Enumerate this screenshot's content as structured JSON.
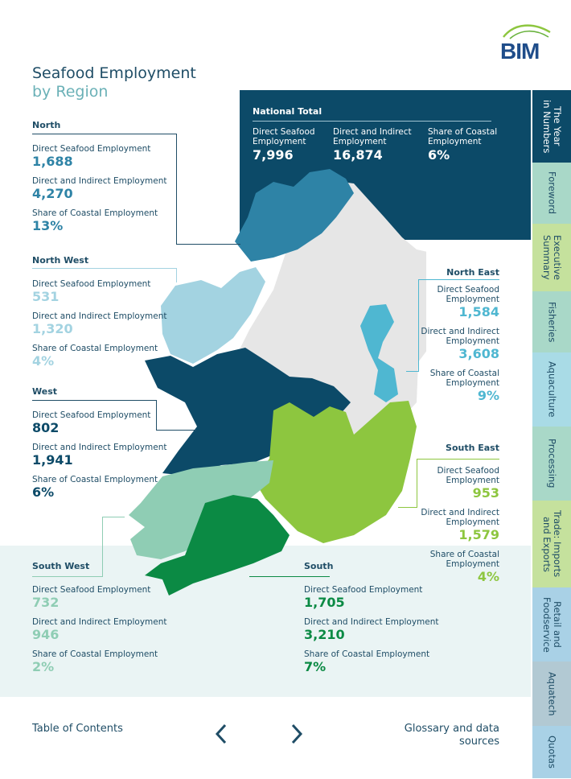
{
  "header": {
    "title": "Seafood Employment",
    "subtitle": "by Region",
    "logo_text": "BIM"
  },
  "national": {
    "title": "National Total",
    "items": [
      {
        "label": "Direct Seafood Employment",
        "value": "7,996"
      },
      {
        "label": "Direct and Indirect Employment",
        "value": "16,874"
      },
      {
        "label": "Share of Coastal Employment",
        "value": "6%"
      }
    ]
  },
  "labels": {
    "direct": "Direct Seafood Employment",
    "indirect": "Direct and Indirect Employment",
    "share": "Share of Coastal Employment"
  },
  "regions": {
    "north": {
      "name": "North",
      "direct": "1,688",
      "indirect": "4,270",
      "share": "13%",
      "color": "#2e83a6"
    },
    "northwest": {
      "name": "North West",
      "direct": "531",
      "indirect": "1,320",
      "share": "4%",
      "color": "#a3d3e1"
    },
    "west": {
      "name": "West",
      "direct": "802",
      "indirect": "1,941",
      "share": "6%",
      "color": "#0c4a68"
    },
    "southwest": {
      "name": "South West",
      "direct": "732",
      "indirect": "946",
      "share": "2%",
      "color": "#8fcdb4"
    },
    "south": {
      "name": "South",
      "direct": "1,705",
      "indirect": "3,210",
      "share": "7%",
      "color": "#0b8a44"
    },
    "northeast": {
      "name": "North East",
      "direct": "1,584",
      "indirect": "3,608",
      "share": "9%",
      "color": "#4fb7d1"
    },
    "southeast": {
      "name": "South East",
      "direct": "953",
      "indirect": "1,579",
      "share": "4%",
      "color": "#8dc63f"
    }
  },
  "tabs": [
    {
      "label": "The Year\nin Numbers",
      "color": "#0c4a68",
      "text_color": "#ffffff"
    },
    {
      "label": "Foreword",
      "color": "#a9d8c8",
      "text_color": "#1f4d66"
    },
    {
      "label": "Executive\nSummary",
      "color": "#c5e19d",
      "text_color": "#1f4d66"
    },
    {
      "label": "Fisheries",
      "color": "#a9d8c8",
      "text_color": "#1f4d66"
    },
    {
      "label": "Aquaculture",
      "color": "#a9dbe6",
      "text_color": "#1f4d66"
    },
    {
      "label": "Processing",
      "color": "#a9d8c8",
      "text_color": "#1f4d66"
    },
    {
      "label": "Trade: Imports\nand Exports",
      "color": "#c5e19d",
      "text_color": "#1f4d66"
    },
    {
      "label": "Retail and\nFoodservice",
      "color": "#a9d1e6",
      "text_color": "#1f4d66"
    },
    {
      "label": "Aquatech",
      "color": "#b2c9d3",
      "text_color": "#1f4d66"
    },
    {
      "label": "Quotas",
      "color": "#a9d1e6",
      "text_color": "#1f4d66"
    }
  ],
  "footer": {
    "toc": "Table of Contents",
    "glossary": "Glossary and data sources",
    "prev_icon": "chevron-left-icon",
    "next_icon": "chevron-right-icon"
  }
}
